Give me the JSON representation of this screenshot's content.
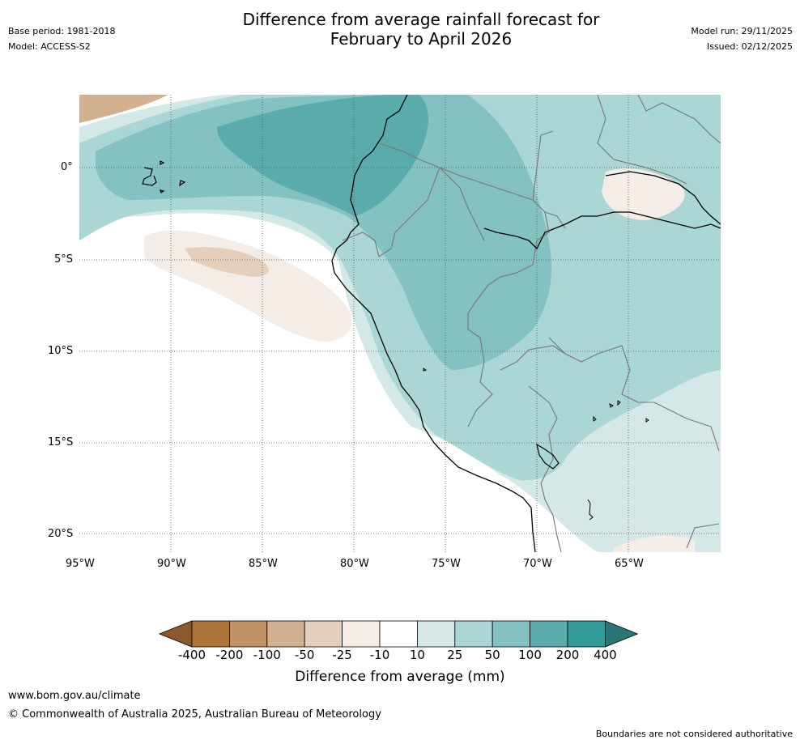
{
  "header": {
    "title_line1": "Difference from average rainfall forecast for",
    "title_line2": "February to April 2026",
    "base_period": "Base period: 1981-2018",
    "model": "Model: ACCESS-S2",
    "model_run": "Model run: 29/11/2025",
    "issued": "Issued: 02/12/2025"
  },
  "map": {
    "lat_labels": [
      "0°",
      "5°S",
      "10°S",
      "15°S",
      "20°S"
    ],
    "lon_labels": [
      "95°W",
      "90°W",
      "85°W",
      "80°W",
      "75°W",
      "70°W",
      "65°W"
    ]
  },
  "colorbar": {
    "tick_labels": [
      "-400",
      "-200",
      "-100",
      "-50",
      "-25",
      "-10",
      "10",
      "25",
      "50",
      "100",
      "200",
      "400"
    ],
    "colors": [
      "#8c5a2a",
      "#ad7339",
      "#c19366",
      "#d3b08f",
      "#e4cfbd",
      "#f4ece6",
      "#ffffff",
      "#d3e8e7",
      "#aad6d5",
      "#84c2c1",
      "#5aacac",
      "#329a98",
      "#2a7675"
    ],
    "label": "Difference from average (mm)"
  },
  "footer": {
    "website": "www.bom.gov.au/climate",
    "copyright": "© Commonwealth of Australia 2025, Australian Bureau of Meteorology",
    "disclaimer": "Boundaries are not considered authoritative"
  }
}
